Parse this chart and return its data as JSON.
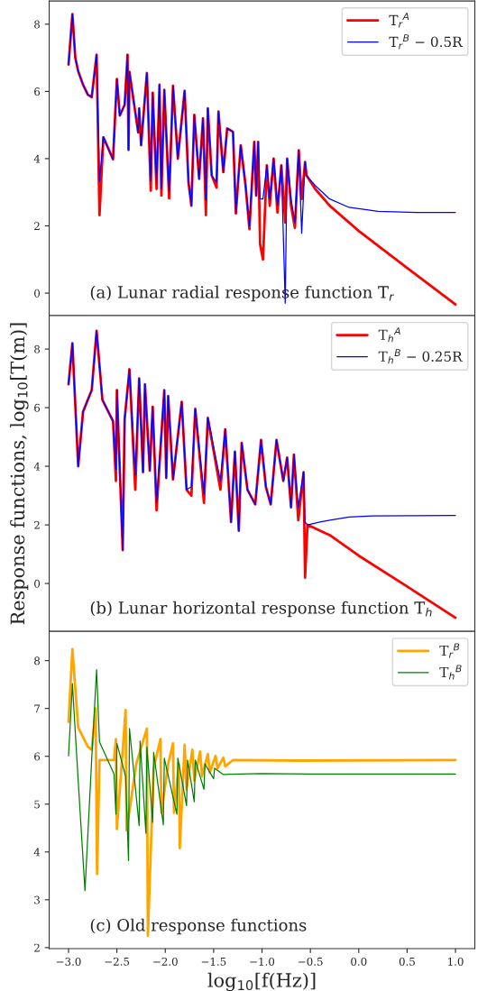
{
  "chart_data": [
    {
      "type": "line",
      "xlim": [
        -3.2,
        1.2
      ],
      "ylim": [
        -0.67,
        8.69
      ],
      "yticks": [
        0,
        2,
        4,
        6,
        8
      ],
      "tick_labels": "y",
      "legend": "top right",
      "annotations": [
        "(a) Lunar radial response function T$_{r}$"
      ],
      "series": [
        {
          "name": "T$_{r}$$^{A}$",
          "color": "#ff0000",
          "x": [
            -3.0,
            -2.96,
            -2.93,
            -2.9,
            -2.85,
            -2.8,
            -2.76,
            -2.71,
            -2.68,
            -2.64,
            -2.54,
            -2.5,
            -2.47,
            -2.42,
            -2.39,
            -2.38,
            -2.37,
            -2.28,
            -2.27,
            -2.25,
            -2.19,
            -2.15,
            -2.13,
            -2.09,
            -2.06,
            -2.04,
            -2.01,
            -1.96,
            -1.92,
            -1.87,
            -1.8,
            -1.76,
            -1.73,
            -1.7,
            -1.65,
            -1.61,
            -1.58,
            -1.56,
            -1.52,
            -1.47,
            -1.45,
            -1.4,
            -1.36,
            -1.3,
            -1.27,
            -1.22,
            -1.17,
            -1.13,
            -1.08,
            -1.06,
            -1.04,
            -1.02,
            -0.99,
            -0.95,
            -0.92,
            -0.88,
            -0.84,
            -0.8,
            -0.76,
            -0.74,
            -0.7,
            -0.66,
            -0.62,
            -0.59,
            -0.555,
            -0.54,
            -0.45,
            -0.3,
            0.0,
            0.5,
            1.0
          ],
          "values": [
            6.8,
            8.3,
            7.0,
            6.6,
            6.2,
            5.9,
            5.83,
            7.09,
            2.32,
            4.64,
            3.98,
            6.37,
            5.28,
            5.6,
            7.09,
            4.26,
            6.58,
            4.78,
            5.5,
            4.4,
            6.55,
            3.05,
            5.96,
            3.1,
            6.2,
            2.9,
            6.05,
            2.82,
            6.17,
            4.0,
            6.02,
            3.3,
            2.6,
            5.3,
            3.4,
            5.2,
            2.32,
            5.5,
            3.5,
            3.14,
            5.4,
            3.6,
            4.9,
            4.8,
            2.37,
            4.4,
            3.2,
            1.9,
            4.5,
            2.9,
            4.5,
            1.46,
            1.0,
            3.8,
            2.6,
            4.0,
            2.4,
            3.8,
            2.1,
            4.0,
            2.6,
            1.94,
            4.25,
            2.8,
            3.9,
            3.5,
            3.1,
            2.6,
            1.85,
            0.75,
            -0.34
          ]
        },
        {
          "name": "T$_{r}$$^{B}$ − 0.5R",
          "color": "#0000ff",
          "x": [
            -3.0,
            -2.96,
            -2.93,
            -2.9,
            -2.85,
            -2.8,
            -2.76,
            -2.71,
            -2.68,
            -2.64,
            -2.54,
            -2.5,
            -2.47,
            -2.42,
            -2.39,
            -2.38,
            -2.37,
            -2.28,
            -2.27,
            -2.25,
            -2.19,
            -2.15,
            -2.13,
            -2.09,
            -2.06,
            -2.04,
            -2.01,
            -1.96,
            -1.92,
            -1.87,
            -1.8,
            -1.76,
            -1.73,
            -1.7,
            -1.65,
            -1.61,
            -1.58,
            -1.56,
            -1.52,
            -1.47,
            -1.45,
            -1.4,
            -1.36,
            -1.3,
            -1.27,
            -1.22,
            -1.17,
            -1.13,
            -1.08,
            -1.06,
            -1.04,
            -1.02,
            -0.99,
            -0.95,
            -0.92,
            -0.88,
            -0.84,
            -0.8,
            -0.76,
            -0.74,
            -0.7,
            -0.66,
            -0.62,
            -0.59,
            -0.555,
            -0.54,
            -0.45,
            -0.3,
            -0.1,
            0.2,
            0.6,
            1.0
          ],
          "values": [
            6.8,
            8.3,
            7.0,
            6.6,
            6.2,
            5.9,
            5.83,
            7.09,
            3.32,
            4.64,
            3.98,
            6.37,
            5.28,
            5.6,
            7.09,
            4.26,
            6.58,
            4.78,
            5.5,
            4.4,
            6.55,
            3.33,
            5.96,
            3.3,
            6.2,
            3.1,
            6.05,
            3.0,
            6.17,
            4.0,
            6.02,
            3.3,
            2.6,
            5.3,
            3.4,
            5.2,
            2.78,
            5.5,
            3.5,
            3.3,
            5.4,
            3.6,
            4.9,
            4.8,
            2.37,
            4.4,
            3.2,
            2.0,
            4.5,
            2.9,
            4.5,
            2.8,
            2.8,
            3.8,
            2.8,
            4.0,
            2.6,
            3.8,
            -0.3,
            4.0,
            2.8,
            2.1,
            4.25,
            1.78,
            3.9,
            3.5,
            3.2,
            2.8,
            2.55,
            2.43,
            2.4,
            2.4
          ]
        }
      ]
    },
    {
      "type": "line",
      "xlim": [
        -3.2,
        1.2
      ],
      "ylim": [
        -1.63,
        9.14
      ],
      "yticks": [
        0,
        2,
        4,
        6,
        8
      ],
      "tick_labels": "y",
      "legend": "top right",
      "ylabel": "Response functions, log$_{10}$[T(m)]",
      "annotations": [
        "(b) Lunar horizontal response function T$_{h}$"
      ],
      "series": [
        {
          "name": "T$_{h}$$^{A}$",
          "color": "#ff0000",
          "x": [
            -3.0,
            -2.96,
            -2.9,
            -2.85,
            -2.76,
            -2.71,
            -2.65,
            -2.54,
            -2.51,
            -2.5,
            -2.44,
            -2.42,
            -2.37,
            -2.31,
            -2.27,
            -2.23,
            -2.21,
            -2.16,
            -2.13,
            -2.09,
            -2.01,
            -1.99,
            -1.97,
            -1.92,
            -1.83,
            -1.78,
            -1.73,
            -1.69,
            -1.6,
            -1.56,
            -1.43,
            -1.38,
            -1.32,
            -1.28,
            -1.24,
            -1.21,
            -1.15,
            -1.07,
            -1.01,
            -0.96,
            -0.91,
            -0.85,
            -0.78,
            -0.74,
            -0.7,
            -0.67,
            -0.625,
            -0.57,
            -0.555,
            -0.53,
            -0.3,
            0.0,
            0.5,
            1.0
          ],
          "values": [
            6.8,
            8.2,
            4.0,
            5.86,
            6.6,
            8.62,
            6.27,
            5.54,
            3.5,
            6.6,
            1.14,
            5.6,
            7.31,
            3.2,
            7.0,
            3.8,
            6.8,
            3.85,
            6.03,
            2.5,
            6.6,
            3.6,
            6.4,
            3.55,
            6.2,
            3.2,
            3.0,
            5.96,
            2.75,
            5.65,
            3.2,
            5.26,
            2.1,
            4.5,
            1.8,
            4.8,
            3.2,
            2.7,
            4.9,
            3.3,
            2.7,
            4.9,
            3.5,
            4.3,
            2.6,
            4.4,
            2.16,
            3.8,
            0.2,
            2.0,
            1.65,
            0.95,
            -0.1,
            -1.17
          ]
        },
        {
          "name": "T$_{h}$$^{B}$ − 0.25R",
          "color": "#0000ff",
          "x": [
            -3.0,
            -2.96,
            -2.9,
            -2.85,
            -2.76,
            -2.71,
            -2.65,
            -2.54,
            -2.51,
            -2.5,
            -2.44,
            -2.42,
            -2.37,
            -2.31,
            -2.27,
            -2.23,
            -2.21,
            -2.16,
            -2.13,
            -2.09,
            -2.01,
            -1.99,
            -1.97,
            -1.92,
            -1.83,
            -1.78,
            -1.73,
            -1.69,
            -1.6,
            -1.56,
            -1.43,
            -1.38,
            -1.32,
            -1.28,
            -1.24,
            -1.21,
            -1.15,
            -1.07,
            -1.01,
            -0.96,
            -0.91,
            -0.85,
            -0.78,
            -0.74,
            -0.7,
            -0.67,
            -0.625,
            -0.57,
            -0.555,
            -0.53,
            -0.4,
            -0.3,
            -0.1,
            0.145,
            1.0
          ],
          "values": [
            6.8,
            8.2,
            4.0,
            5.86,
            6.6,
            8.62,
            6.27,
            5.54,
            3.9,
            6.6,
            1.14,
            5.6,
            7.31,
            3.7,
            7.0,
            3.8,
            6.8,
            3.85,
            6.03,
            2.75,
            6.6,
            3.6,
            6.4,
            3.55,
            6.2,
            3.2,
            3.3,
            5.96,
            3.05,
            5.65,
            3.5,
            5.26,
            2.1,
            4.5,
            1.8,
            4.8,
            3.2,
            2.7,
            4.9,
            3.3,
            2.7,
            4.9,
            3.5,
            4.3,
            2.6,
            4.4,
            2.6,
            3.8,
            2.1,
            2.0,
            2.1,
            2.16,
            2.27,
            2.31,
            2.32
          ]
        }
      ]
    },
    {
      "type": "line",
      "xlim": [
        -3.2,
        1.2
      ],
      "xticks": [
        {
          "value": -3.0,
          "label": "−3.0"
        },
        {
          "value": -2.5,
          "label": "−2.5"
        },
        {
          "value": -2.0,
          "label": "−2.0"
        },
        {
          "value": -1.5,
          "label": "−1.5"
        },
        {
          "value": -1.0,
          "label": "−1.0"
        },
        {
          "value": -0.5,
          "label": "−0.5"
        },
        {
          "value": 0.0,
          "label": "0.0"
        },
        {
          "value": 0.5,
          "label": "0.5"
        },
        {
          "value": 1.0,
          "label": "1.0"
        }
      ],
      "ylim": [
        1.98,
        8.61
      ],
      "yticks": [
        2,
        3,
        4,
        5,
        6,
        7,
        8
      ],
      "legend": "top right",
      "xlabel": "log$_{10}$[f(Hz)]",
      "annotations": [
        "(c) Old response functions"
      ],
      "series": [
        {
          "name": "T$_{r}$$^{B}$",
          "color": "#ffa500",
          "x": [
            -3.0,
            -2.96,
            -2.9,
            -2.8,
            -2.76,
            -2.72,
            -2.705,
            -2.68,
            -2.53,
            -2.51,
            -2.5,
            -2.45,
            -2.41,
            -2.4,
            -2.3,
            -2.19,
            -2.18,
            -2.12,
            -2.05,
            -2.04,
            -1.97,
            -1.92,
            -1.91,
            -1.86,
            -1.85,
            -1.8,
            -1.78,
            -1.72,
            -1.7,
            -1.64,
            -1.62,
            -1.56,
            -1.54,
            -1.48,
            -1.46,
            -1.4,
            -1.38,
            -1.3,
            -0.6,
            1.0
          ],
          "values": [
            6.72,
            8.24,
            6.6,
            6.2,
            6.14,
            7.0,
            3.54,
            5.92,
            5.92,
            6.36,
            4.48,
            5.84,
            6.97,
            4.45,
            5.84,
            6.58,
            2.25,
            5.75,
            6.36,
            4.82,
            5.84,
            6.27,
            4.82,
            5.84,
            4.08,
            6.24,
            5.31,
            6.14,
            5.49,
            6.1,
            5.58,
            6.05,
            5.66,
            6.01,
            5.75,
            5.97,
            5.79,
            5.92,
            5.91,
            5.92
          ]
        },
        {
          "name": "T$_{h}$$^{B}$",
          "color": "#008000",
          "x": [
            -3.0,
            -2.96,
            -2.91,
            -2.83,
            -2.76,
            -2.71,
            -2.68,
            -2.53,
            -2.51,
            -2.5,
            -2.41,
            -2.38,
            -2.37,
            -2.27,
            -2.26,
            -2.2,
            -2.19,
            -2.13,
            -2.12,
            -2.02,
            -2.01,
            -1.88,
            -1.87,
            -1.78,
            -1.77,
            -1.7,
            -1.69,
            -1.6,
            -1.59,
            -1.5,
            -1.49,
            -1.4,
            -1.0,
            -0.5,
            1.0
          ],
          "values": [
            6.01,
            7.52,
            5.82,
            3.19,
            5.96,
            7.81,
            6.3,
            5.63,
            4.79,
            6.27,
            5.58,
            3.82,
            6.58,
            4.55,
            6.32,
            4.39,
            6.19,
            4.62,
            6.08,
            4.57,
            5.96,
            4.79,
            5.96,
            4.97,
            5.92,
            5.05,
            5.92,
            5.31,
            5.84,
            5.53,
            5.75,
            5.62,
            5.64,
            5.63,
            5.63
          ]
        }
      ]
    }
  ]
}
